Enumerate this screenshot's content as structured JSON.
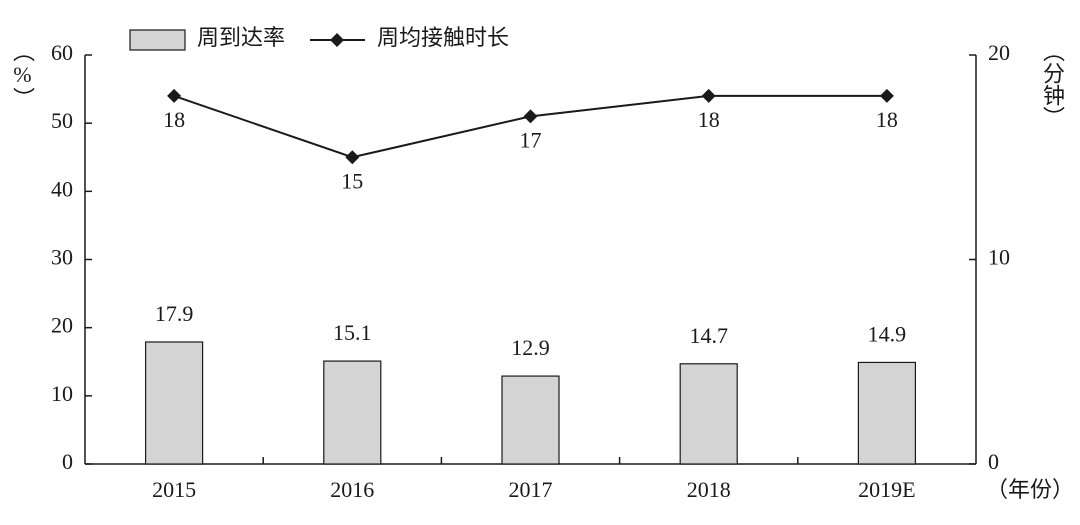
{
  "chart_data": {
    "type": "combo",
    "categories": [
      "2015",
      "2016",
      "2017",
      "2018",
      "2019E"
    ],
    "series": [
      {
        "name": "周到达率",
        "type": "bar",
        "color": "#d4d4d4",
        "values": [
          17.9,
          15.1,
          12.9,
          14.7,
          14.9
        ]
      },
      {
        "name": "周均接触时长",
        "type": "line",
        "color": "#1a1a1a",
        "axis": "y2",
        "values": [
          18,
          15,
          17,
          18,
          18
        ]
      }
    ],
    "ylabel": "（%）",
    "y2label": "（分钟）",
    "xlabel": "（年份）",
    "ylim": [
      0,
      60
    ],
    "yticks": [
      0,
      10,
      20,
      30,
      40,
      50,
      60
    ],
    "y2lim": [
      0,
      20
    ],
    "y2ticks": [
      0,
      10,
      20
    ],
    "legend": "top"
  }
}
